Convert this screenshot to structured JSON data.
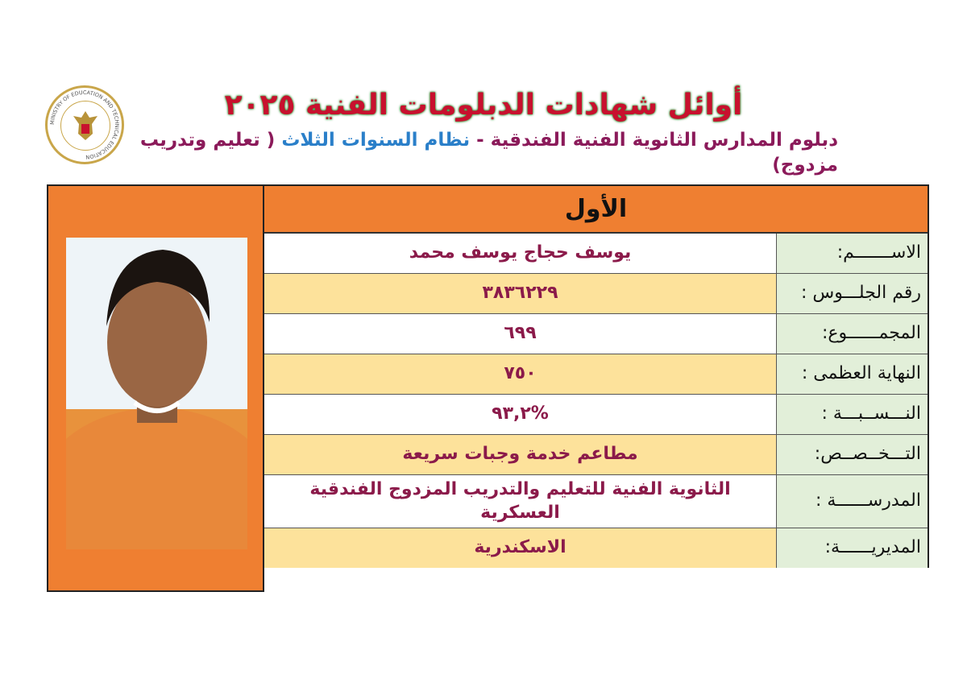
{
  "logo": {
    "ring_text": "MINISTRY OF EDUCATION AND TECHNICAL EDUCATION",
    "accent": "#c9a64a"
  },
  "header": {
    "title": "أوائل شهادات الدبلومات الفنية ٢٠٢٥",
    "subtitle_part1": "دبلوم المدارس الثانوية الفنية الفندقية -",
    "subtitle_part2": "نظام السنوات الثلاث",
    "subtitle_part3": "( تعليم وتدريب مزدوج)"
  },
  "card": {
    "rank": "الأول",
    "rows": [
      {
        "label": "الاســـــــم:",
        "value": "يوسف حجاج يوسف محمد"
      },
      {
        "label": "رقم الجلـــوس :",
        "value": "٣٨٣٦٢٢٩"
      },
      {
        "label": "المجمــــــوع:",
        "value": "٦٩٩"
      },
      {
        "label": "النهاية العظمى :",
        "value": "٧٥٠"
      },
      {
        "label": "النـــســبـــة :",
        "value": "%٩٣,٢"
      },
      {
        "label": "التـــخــصــص:",
        "value": "مطاعم خدمة وجبات سريعة"
      },
      {
        "label": "المدرســــــة :",
        "value": "الثانوية الفنية للتعليم والتدريب المزدوج الفندقية العسكرية"
      },
      {
        "label": "المديريــــــة:",
        "value": "الاسكندرية"
      }
    ]
  },
  "colors": {
    "orange": "#ef7f31",
    "label_bg": "#e2efd9",
    "yellow_row": "#fde29b",
    "value_text": "#8b1a4a",
    "title": "#c8102e"
  }
}
